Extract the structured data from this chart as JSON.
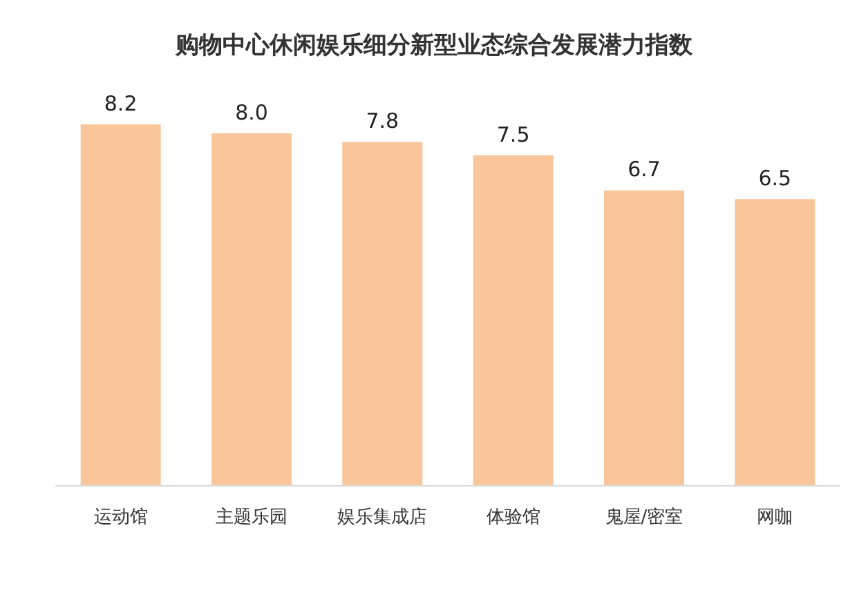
{
  "chart_data": {
    "type": "bar",
    "title": "购物中心休闲娱乐细分新型业态综合发展潜力指数",
    "categories": [
      "运动馆",
      "主题乐园",
      "娱乐集成店",
      "体验馆",
      "鬼屋/密室",
      "网咖"
    ],
    "values": [
      8.2,
      8.0,
      7.8,
      7.5,
      6.7,
      6.5
    ],
    "value_labels": [
      "8.2",
      "8.0",
      "7.8",
      "7.5",
      "6.7",
      "6.5"
    ],
    "color": "#f9c69b"
  }
}
